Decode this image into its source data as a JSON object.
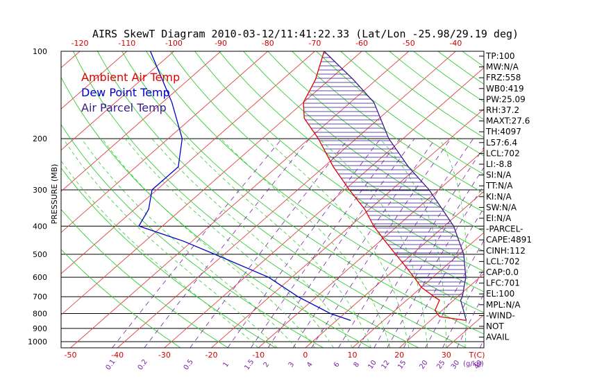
{
  "title": "AIRS SkewT Diagram 2010-03-12/11:41:22.33 (Lat/Lon -25.98/29.19 deg)",
  "colors": {
    "ambient": "#e00000",
    "dewpoint": "#0000c8",
    "parcel": "#3a1a8c",
    "isotherm": "#e04040",
    "dry_adiabat": "#33cc33",
    "moist_adiabat": "#33cc33",
    "mixing_ratio": "#7a1fa2",
    "isobar": "#000000"
  },
  "legend": [
    {
      "label": "Ambient Air Temp",
      "color": "#e00000"
    },
    {
      "label": "Dew Point Temp",
      "color": "#0000c8"
    },
    {
      "label": "Air Parcel Temp",
      "color": "#3a1a8c"
    }
  ],
  "side_panel": [
    "TP:100",
    "MW:N/A",
    "FRZ:558",
    "WB0:419",
    "PW:25.09",
    "RH:37.2",
    "MAXT:27.6",
    "TH:4097",
    "L57:6.4",
    "LCL:702",
    "LI:-8.8",
    "SI:N/A",
    "TT:N/A",
    "KI:N/A",
    "SW:N/A",
    "EI:N/A",
    "-PARCEL-",
    "CAPE:4891",
    "CINH:112",
    "LCL:702",
    "CAP:0.0",
    "LFC:701",
    "EL:100",
    "MPL:N/A",
    "-WIND-",
    "NOT",
    "AVAIL"
  ],
  "chart_data": {
    "type": "line",
    "title": "AIRS SkewT Diagram 2010-03-12/11:41:22.33 (Lat/Lon -25.98/29.19 deg)",
    "ylabel": "PRESSURE (MB)",
    "xlabel": "T(C)",
    "mixing_ratio_label": "(g/kg)",
    "y_scale": "log",
    "ylim": [
      1050,
      100
    ],
    "pressure_ticks": [
      "100",
      "200",
      "300",
      "400",
      "500",
      "600",
      "700",
      "800",
      "900",
      "1000"
    ],
    "top_temp_ticks": [
      "-120",
      "-110",
      "-100",
      "-90",
      "-80",
      "-70",
      "-60",
      "-50",
      "-40"
    ],
    "bottom_temp_ticks": [
      "-50",
      "-40",
      "-30",
      "-20",
      "-10",
      "0",
      "10",
      "20",
      "30"
    ],
    "mixing_ratio_ticks": [
      "0.1",
      "0.2",
      "0.5",
      "1",
      "1.5",
      "2",
      "3",
      "4",
      "6",
      "8",
      "10",
      "12",
      "15",
      "20",
      "25",
      "30",
      "40"
    ],
    "series": [
      {
        "name": "Ambient Air Temp",
        "pressure": [
          845,
          820,
          780,
          720,
          700,
          650,
          600,
          550,
          500,
          450,
          400,
          350,
          300,
          250,
          200,
          170,
          150,
          125,
          100
        ],
        "values": [
          27.6,
          21,
          18.5,
          17,
          15,
          10,
          6,
          1.5,
          -3.5,
          -9,
          -15,
          -21,
          -29,
          -38,
          -48,
          -56,
          -60,
          -63,
          -68
        ]
      },
      {
        "name": "Dew Point Temp",
        "pressure": [
          845,
          800,
          700,
          600,
          500,
          450,
          400,
          350,
          300,
          250,
          200,
          150,
          100
        ],
        "values": [
          3,
          -3,
          -14,
          -25,
          -42,
          -52,
          -65,
          -67,
          -71,
          -71,
          -77,
          -88,
          -105
        ]
      },
      {
        "name": "Air Parcel Temp",
        "pressure": [
          845,
          720,
          700,
          600,
          500,
          400,
          300,
          250,
          200,
          150,
          125,
          100
        ],
        "values": [
          27.6,
          21.5,
          21,
          17,
          11,
          2,
          -12,
          -22,
          -33,
          -45,
          -55,
          -68
        ]
      }
    ]
  }
}
